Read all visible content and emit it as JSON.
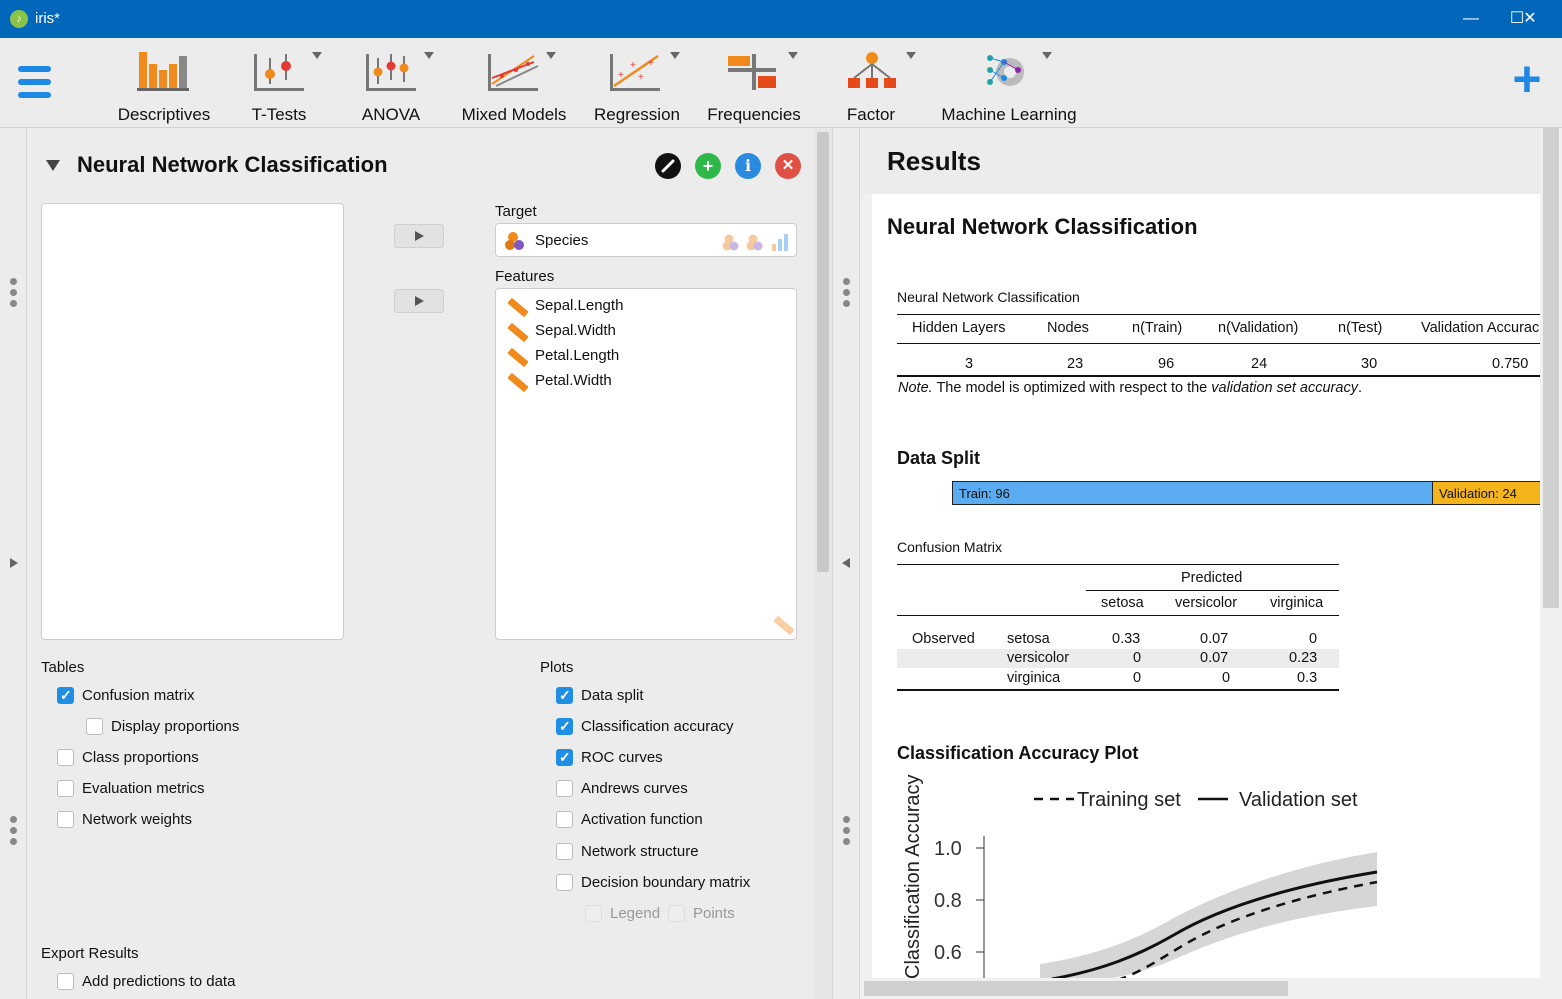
{
  "window": {
    "title": "iris*",
    "minimize": "—",
    "maximize": "☐",
    "close": "✕"
  },
  "ribbon": {
    "items": [
      {
        "label": "Descriptives"
      },
      {
        "label": "T-Tests"
      },
      {
        "label": "ANOVA"
      },
      {
        "label": "Mixed Models"
      },
      {
        "label": "Regression"
      },
      {
        "label": "Frequencies"
      },
      {
        "label": "Factor"
      },
      {
        "label": "Machine Learning"
      }
    ],
    "add": "+"
  },
  "colors": {
    "accent": "#1e88e5",
    "titlebar": "#0167bb",
    "train": "#5aabf0",
    "validation": "#f3b41c",
    "ribbon_orange": "#f08a1c"
  },
  "analysis": {
    "title": "Neural Network Classification",
    "target_label": "Target",
    "target_value": "Species",
    "features_label": "Features",
    "features": [
      "Sepal.Length",
      "Sepal.Width",
      "Petal.Length",
      "Petal.Width"
    ],
    "tables_label": "Tables",
    "tables": [
      {
        "label": "Confusion matrix",
        "checked": true
      },
      {
        "label": "Display proportions",
        "checked": false
      },
      {
        "label": "Class proportions",
        "checked": false
      },
      {
        "label": "Evaluation metrics",
        "checked": false
      },
      {
        "label": "Network weights",
        "checked": false
      }
    ],
    "plots_label": "Plots",
    "plots": [
      {
        "label": "Data split",
        "checked": true
      },
      {
        "label": "Classification accuracy",
        "checked": true
      },
      {
        "label": "ROC curves",
        "checked": true
      },
      {
        "label": "Andrews curves",
        "checked": false
      },
      {
        "label": "Activation function",
        "checked": false
      },
      {
        "label": "Network structure",
        "checked": false
      },
      {
        "label": "Decision boundary matrix",
        "checked": false
      },
      {
        "label": "Legend",
        "checked": true,
        "disabled": true
      },
      {
        "label": "Points",
        "checked": true,
        "disabled": true
      }
    ],
    "export_label": "Export Results",
    "export_items": [
      {
        "label": "Add predictions to data",
        "checked": false
      }
    ]
  },
  "results": {
    "title": "Results",
    "analysis_title": "Neural Network Classification",
    "main_table": {
      "title": "Neural Network Classification",
      "headers": [
        "Hidden Layers",
        "Nodes",
        "n(Train)",
        "n(Validation)",
        "n(Test)",
        "Validation Accurac"
      ],
      "row": [
        "3",
        "23",
        "96",
        "24",
        "30",
        "0.750"
      ],
      "note_prefix": "Note.",
      "note_mid": " The model is optimized with respect to the ",
      "note_em": "validation set accuracy",
      "note_end": "."
    },
    "data_split": {
      "title": "Data Split",
      "train_label": "Train: 96",
      "validation_label": "Validation: 24"
    },
    "confusion": {
      "title": "Confusion Matrix",
      "predicted": "Predicted",
      "observed": "Observed",
      "classes": [
        "setosa",
        "versicolor",
        "virginica"
      ],
      "rows": [
        [
          "0.33",
          "0.07",
          "0"
        ],
        [
          "0",
          "0.07",
          "0.23"
        ],
        [
          "0",
          "0",
          "0.3"
        ]
      ]
    },
    "accuracy_plot": {
      "title": "Classification Accuracy Plot",
      "legend": [
        "Training set",
        "Validation set"
      ],
      "ylabel": "Classification Accuracy",
      "yticks": [
        "1.0",
        "0.8",
        "0.6"
      ]
    }
  }
}
